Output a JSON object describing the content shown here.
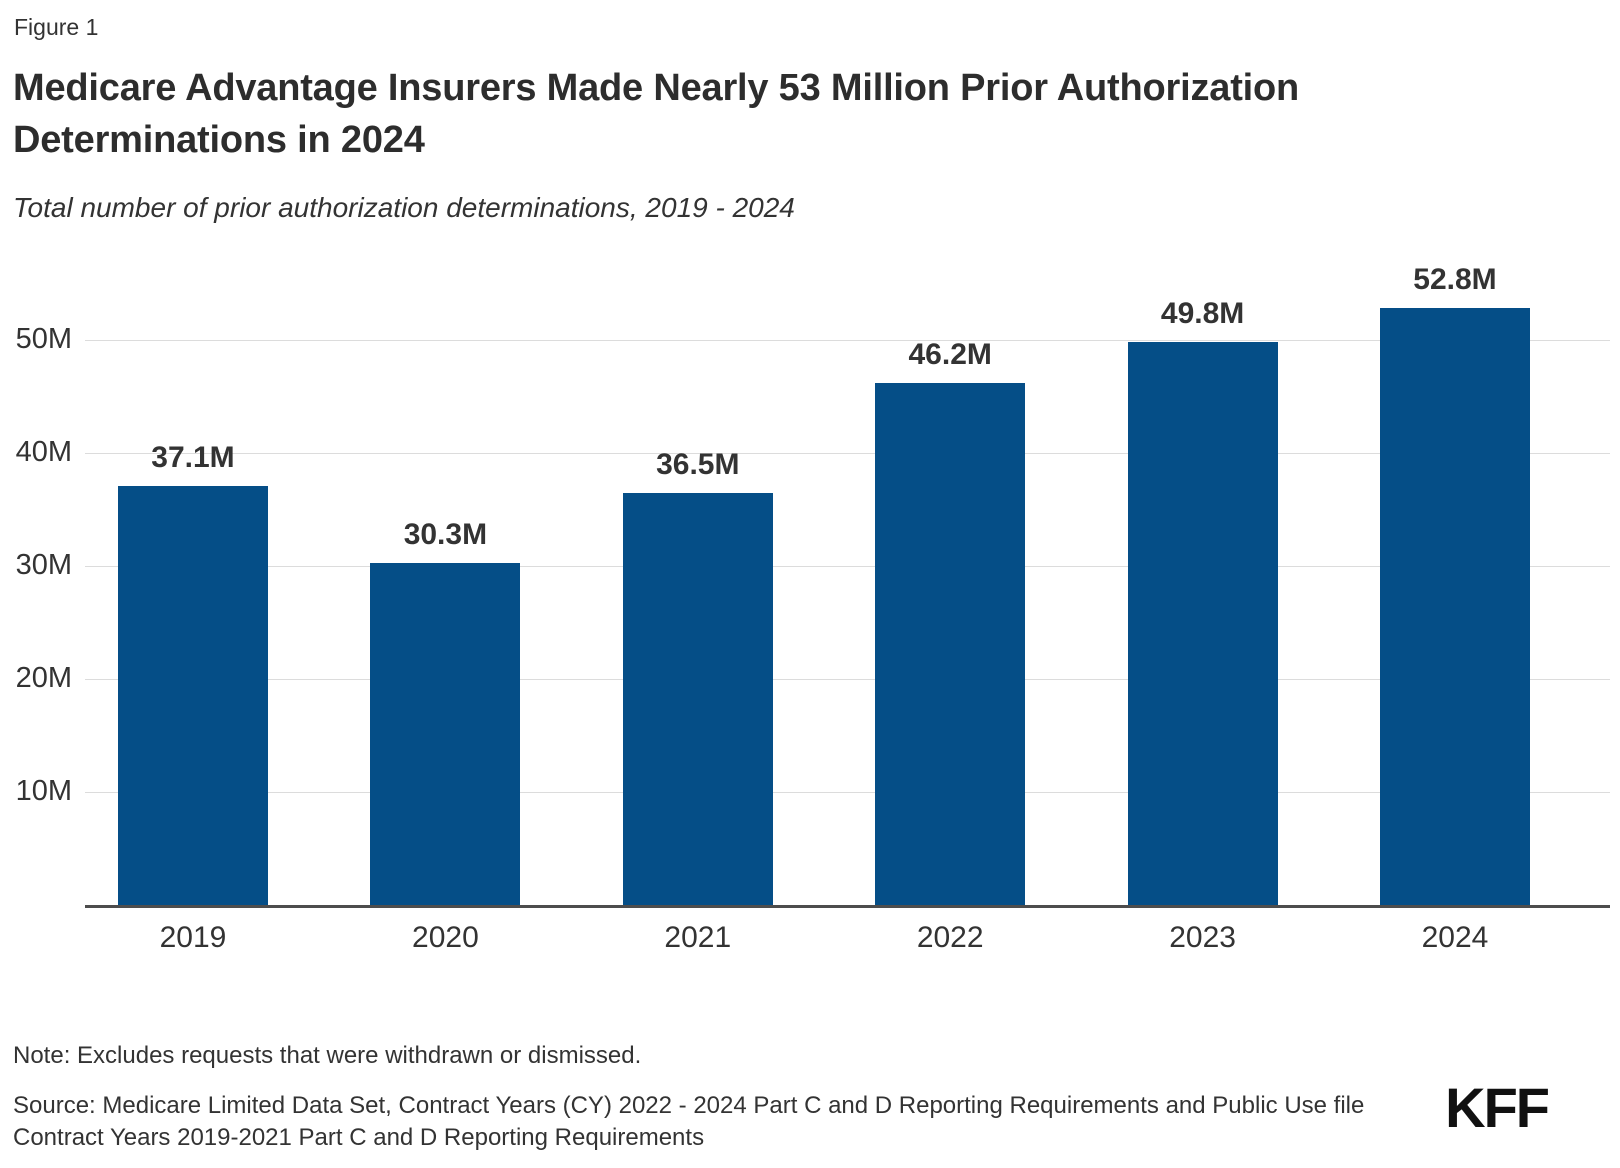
{
  "figure_label": "Figure 1",
  "title": "Medicare Advantage Insurers Made Nearly 53 Million Prior Authorization Determinations in 2024",
  "subtitle": "Total number of prior authorization determinations, 2019 - 2024",
  "note": "Note: Excludes requests that were withdrawn or dismissed.",
  "source_lines": [
    "Source: Medicare Limited Data Set, Contract Years (CY) 2022 - 2024 Part C and D Reporting Requirements and Public Use file",
    "Contract Years 2019-2021 Part C and D Reporting Requirements"
  ],
  "logo_text": "KFF",
  "colors": {
    "bar": "#054e87",
    "gridline": "#dcdcdc",
    "axis_line": "#4d4d4d",
    "text": "#333333"
  },
  "chart_data": {
    "type": "bar",
    "title": "Medicare Advantage Insurers Made Nearly 53 Million Prior Authorization Determinations in 2024",
    "subtitle": "Total number of prior authorization determinations, 2019 - 2024",
    "categories": [
      "2019",
      "2020",
      "2021",
      "2022",
      "2023",
      "2024"
    ],
    "values": [
      37.1,
      30.3,
      36.5,
      46.2,
      49.8,
      52.8
    ],
    "value_labels": [
      "37.1M",
      "30.3M",
      "36.5M",
      "46.2M",
      "49.8M",
      "52.8M"
    ],
    "unit": "millions of prior authorization determinations",
    "xlabel": "",
    "ylabel": "",
    "ylim": [
      0,
      56
    ],
    "yticks": [
      10,
      20,
      30,
      40,
      50
    ],
    "ytick_labels": [
      "10M",
      "20M",
      "30M",
      "40M",
      "50M"
    ],
    "grid": true,
    "legend": "none",
    "bar_color": "#054e87"
  }
}
